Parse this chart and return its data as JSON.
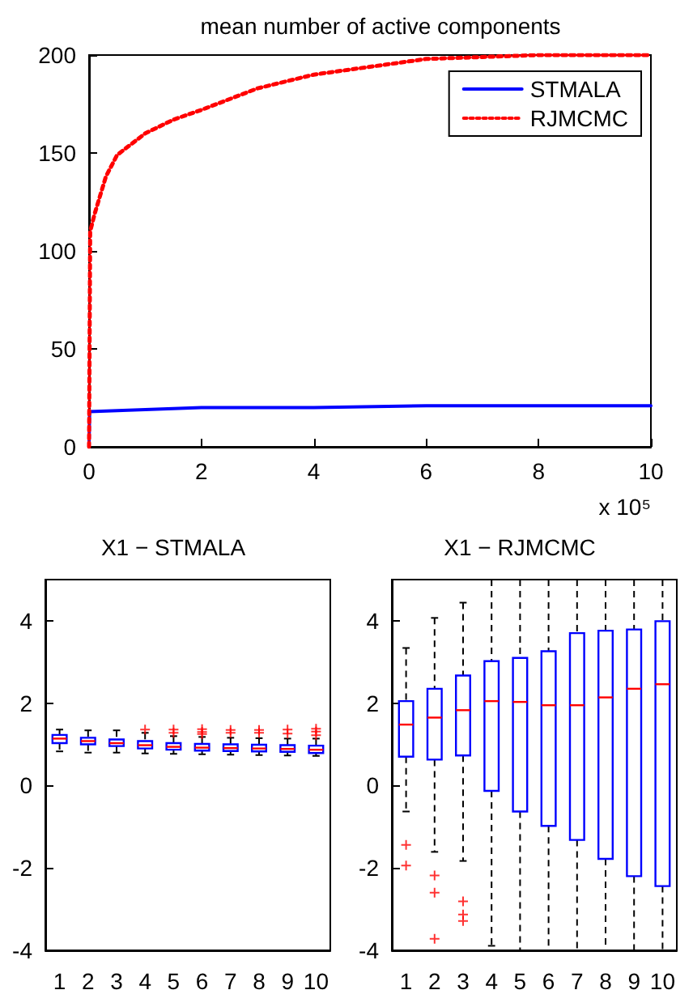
{
  "chart_data": [
    {
      "type": "line",
      "title": "mean number of active components",
      "xlabel": "x 10⁵",
      "xlim": [
        0,
        10
      ],
      "xticks": [
        0,
        2,
        4,
        6,
        8,
        10
      ],
      "ylim": [
        0,
        200
      ],
      "yticks": [
        0,
        50,
        100,
        150,
        200
      ],
      "grid": false,
      "legend": "top right",
      "marker": "none",
      "series": [
        {
          "name": "STMALA",
          "color": "#0000ff",
          "line_style": "solid",
          "x": [
            0,
            0.01,
            1,
            2,
            4,
            6,
            8,
            10
          ],
          "values": [
            0,
            18,
            19,
            20,
            20,
            21,
            21,
            21
          ]
        },
        {
          "name": "RJMCMC",
          "color": "#ff0000",
          "line_style": "dotted",
          "x": [
            0,
            0.02,
            0.1,
            0.3,
            0.5,
            1,
            1.5,
            2,
            3,
            4,
            5,
            6,
            7,
            8,
            9,
            10
          ],
          "values": [
            0,
            110,
            119,
            138,
            149,
            160,
            167,
            172,
            183,
            190,
            194,
            198,
            199,
            200,
            200,
            200
          ]
        }
      ]
    },
    {
      "type": "box",
      "title": "X1 − STMALA",
      "categories": [
        "1",
        "2",
        "3",
        "4",
        "5",
        "6",
        "7",
        "8",
        "9",
        "10"
      ],
      "ylim": [
        -4,
        5
      ],
      "yticks": [
        -4,
        -2,
        0,
        2,
        4
      ],
      "grid": false,
      "color": "#0000ff",
      "boxes": [
        {
          "low": 0.83,
          "q1": 1.03,
          "median": 1.14,
          "q3": 1.23,
          "high": 1.36
        },
        {
          "low": 0.8,
          "q1": 1.0,
          "median": 1.08,
          "q3": 1.16,
          "high": 1.34
        },
        {
          "low": 0.8,
          "q1": 0.96,
          "median": 1.03,
          "q3": 1.12,
          "high": 1.34
        },
        {
          "low": 0.78,
          "q1": 0.9,
          "median": 0.98,
          "q3": 1.08,
          "high": 1.28,
          "outliers": [
            1.36
          ]
        },
        {
          "low": 0.77,
          "q1": 0.87,
          "median": 0.94,
          "q3": 1.03,
          "high": 1.2,
          "outliers": [
            1.28,
            1.36
          ]
        },
        {
          "low": 0.76,
          "q1": 0.85,
          "median": 0.92,
          "q3": 1.01,
          "high": 1.18,
          "outliers": [
            1.25,
            1.3,
            1.37
          ]
        },
        {
          "low": 0.75,
          "q1": 0.84,
          "median": 0.91,
          "q3": 1.0,
          "high": 1.16,
          "outliers": [
            1.28,
            1.35
          ]
        },
        {
          "low": 0.74,
          "q1": 0.83,
          "median": 0.9,
          "q3": 0.99,
          "high": 1.15,
          "outliers": [
            1.28,
            1.35
          ]
        },
        {
          "low": 0.73,
          "q1": 0.82,
          "median": 0.89,
          "q3": 0.98,
          "high": 1.14,
          "outliers": [
            1.26,
            1.36
          ]
        },
        {
          "low": 0.72,
          "q1": 0.79,
          "median": 0.87,
          "q3": 0.97,
          "high": 1.14,
          "outliers": [
            1.22,
            1.31,
            1.38
          ]
        }
      ]
    },
    {
      "type": "box",
      "title": "X1 − RJMCMC",
      "categories": [
        "1",
        "2",
        "3",
        "4",
        "5",
        "6",
        "7",
        "8",
        "9",
        "10"
      ],
      "ylim": [
        -4,
        5
      ],
      "yticks": [
        -4,
        -2,
        0,
        2,
        4
      ],
      "grid": false,
      "color": "#0000ff",
      "boxes": [
        {
          "low": -0.63,
          "q1": 0.7,
          "median": 1.48,
          "q3": 2.05,
          "high": 3.34,
          "outliers": [
            -1.44,
            -1.94
          ]
        },
        {
          "low": -1.61,
          "q1": 0.63,
          "median": 1.65,
          "q3": 2.35,
          "high": 4.07,
          "outliers": [
            -2.18,
            -2.6,
            -3.72
          ]
        },
        {
          "low": -1.83,
          "q1": 0.73,
          "median": 1.83,
          "q3": 2.67,
          "high": 4.44,
          "outliers": [
            -2.81,
            -3.13,
            -3.29
          ]
        },
        {
          "low": -3.89,
          "q1": -0.13,
          "median": 2.05,
          "q3": 3.02,
          "high": 5
        },
        {
          "low": -4,
          "q1": -0.63,
          "median": 2.03,
          "q3": 3.1,
          "high": 5
        },
        {
          "low": -4,
          "q1": -0.98,
          "median": 1.95,
          "q3": 3.26,
          "high": 5
        },
        {
          "low": -4,
          "q1": -1.32,
          "median": 1.95,
          "q3": 3.7,
          "high": 5
        },
        {
          "low": -4,
          "q1": -1.78,
          "median": 2.14,
          "q3": 3.76,
          "high": 5
        },
        {
          "low": -4,
          "q1": -2.2,
          "median": 2.35,
          "q3": 3.79,
          "high": 5
        },
        {
          "low": -4,
          "q1": -2.44,
          "median": 2.46,
          "q3": 3.99,
          "high": 5
        }
      ]
    }
  ]
}
